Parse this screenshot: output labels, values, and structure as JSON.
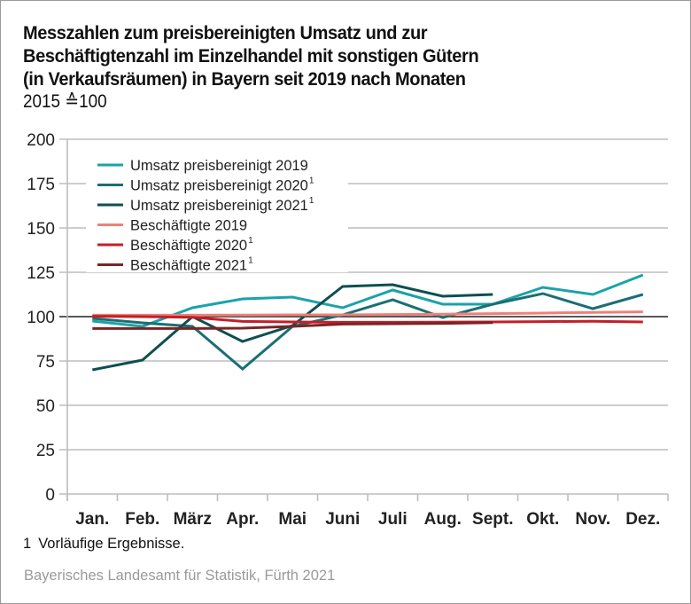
{
  "chart_data": {
    "type": "line",
    "title": "Messzahlen zum preisbereinigten Umsatz und zur Beschäftigtenzahl im Einzelhandel mit sonstigen Gütern (in Verkaufsräumen) in Bayern seit 2019 nach Monaten",
    "title_lines": [
      "Messzahlen zum preisbereinigten Umsatz und zur",
      "Beschäftigtenzahl im Einzelhandel mit sonstigen Gütern",
      "(in Verkaufsräumen) in Bayern seit 2019 nach Monaten"
    ],
    "subtitle": "2015 ≙100",
    "xlabel": "",
    "ylabel": "",
    "categories": [
      "Jan.",
      "Feb.",
      "März",
      "Apr.",
      "Mai",
      "Juni",
      "Juli",
      "Aug.",
      "Sept.",
      "Okt.",
      "Nov.",
      "Dez."
    ],
    "ylim": [
      0,
      200
    ],
    "yticks": [
      0,
      25,
      50,
      75,
      100,
      125,
      150,
      175,
      200
    ],
    "reference_line": 100,
    "grid": true,
    "legend_position": "top-left",
    "series": [
      {
        "name": "Umsatz preisbereinigt 2019",
        "footnote": "",
        "color": "#1aa3a8",
        "values": [
          97.5,
          94.5,
          105,
          110,
          111,
          105,
          115,
          107,
          107,
          116.5,
          112.5,
          123.5
        ]
      },
      {
        "name": "Umsatz preisbereinigt 2020",
        "footnote": "1",
        "color": "#1b6f73",
        "values": [
          99,
          96.5,
          94.5,
          70.5,
          94.5,
          101,
          109.5,
          99.5,
          107,
          113,
          104.5,
          112.5
        ]
      },
      {
        "name": "Umsatz preisbereinigt 2021",
        "footnote": "1",
        "color": "#0e4f50",
        "values": [
          70,
          75.5,
          100,
          86,
          95,
          117,
          118,
          111.5,
          112.5,
          null,
          null,
          null
        ]
      },
      {
        "name": "Beschäftigte 2019",
        "footnote": "",
        "color": "#ef8078",
        "values": [
          100.8,
          100.8,
          100.8,
          100.9,
          101,
          101,
          101.2,
          101.4,
          101.7,
          102,
          102.4,
          102.7
        ]
      },
      {
        "name": "Beschäftigte 2020",
        "footnote": "1",
        "color": "#c41f28",
        "values": [
          100.2,
          100,
          99.6,
          97.3,
          97,
          96.8,
          96.8,
          96.9,
          97,
          97.2,
          97.4,
          97
        ]
      },
      {
        "name": "Beschäftigte 2021",
        "footnote": "1",
        "color": "#7b2424",
        "values": [
          93.3,
          93.3,
          93.3,
          93.5,
          94.5,
          95.8,
          96,
          96.2,
          96.6,
          null,
          null,
          null
        ]
      }
    ]
  },
  "footnote": {
    "number": "1",
    "text": "Vorläufige Ergebnisse."
  },
  "source": "Bayerisches Landesamt für Statistik, Fürth 2021"
}
